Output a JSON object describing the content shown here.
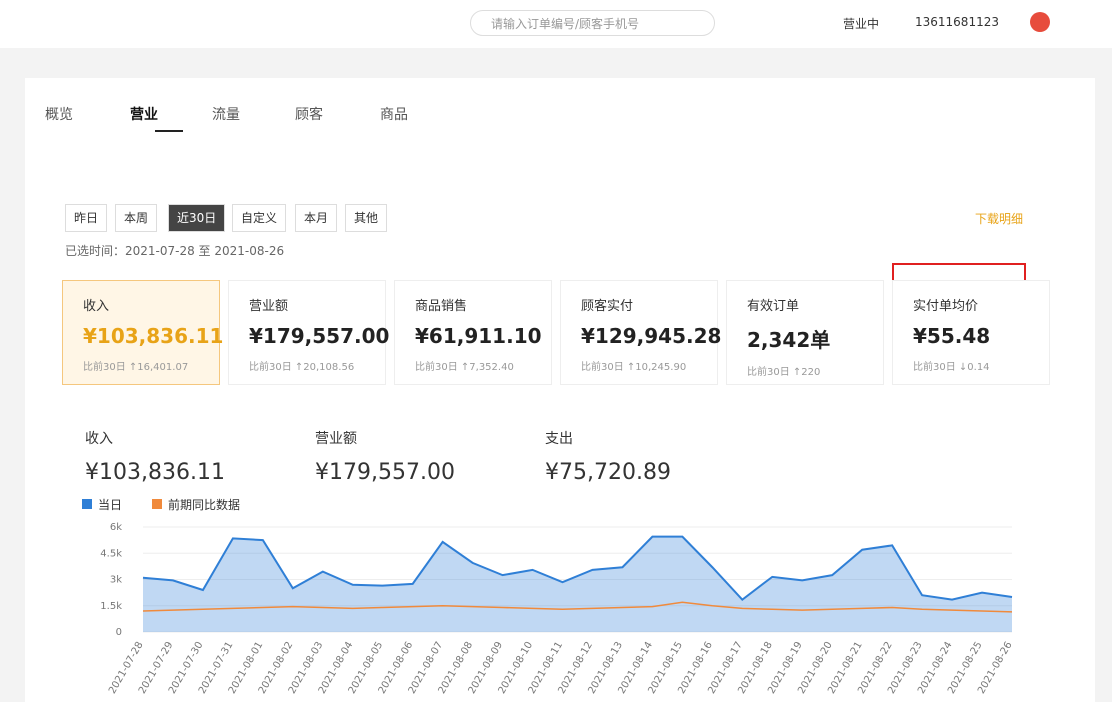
{
  "topbar": {
    "search": "请输入订单编号/顾客手机号",
    "status": "营业中",
    "phone": "13611681123"
  },
  "tabs": [
    "概览",
    "营业",
    "流量",
    "顾客",
    "商品"
  ],
  "ranges": [
    "昨日",
    "本周",
    "近30日",
    "自定义",
    "本月",
    "其他"
  ],
  "date_range": "已选时间：2021-07-28 至 2021-08-26",
  "download": "下载明细",
  "cards": [
    {
      "label": "收入",
      "value": "¥103,836.11",
      "compare": "比前30日 ↑16,401.07"
    },
    {
      "label": "营业额",
      "value": "¥179,557.00",
      "compare": "比前30日 ↑20,108.56"
    },
    {
      "label": "商品销售",
      "value": "¥61,911.10",
      "compare": "比前30日 ↑7,352.40"
    },
    {
      "label": "顾客实付",
      "value": "¥129,945.28",
      "compare": "比前30日 ↑10,245.90"
    },
    {
      "label": "有效订单",
      "value": "2,342单",
      "compare": "比前30日 ↑220"
    },
    {
      "label": "实付单均价",
      "value": "¥55.48",
      "compare": "比前30日 ↓0.14"
    }
  ],
  "summary": [
    {
      "label": "收入",
      "value": "¥103,836.11"
    },
    {
      "label": "营业额",
      "value": "¥179,557.00"
    },
    {
      "label": "支出",
      "value": "¥75,720.89"
    }
  ],
  "chart_data": {
    "type": "area",
    "x": [
      "2021-07-28",
      "2021-07-29",
      "2021-07-30",
      "2021-07-31",
      "2021-08-01",
      "2021-08-02",
      "2021-08-03",
      "2021-08-04",
      "2021-08-05",
      "2021-08-06",
      "2021-08-07",
      "2021-08-08",
      "2021-08-09",
      "2021-08-10",
      "2021-08-11",
      "2021-08-12",
      "2021-08-13",
      "2021-08-14",
      "2021-08-15",
      "2021-08-16",
      "2021-08-17",
      "2021-08-18",
      "2021-08-19",
      "2021-08-20",
      "2021-08-21",
      "2021-08-22",
      "2021-08-23",
      "2021-08-24",
      "2021-08-25",
      "2021-08-26"
    ],
    "series": [
      {
        "name": "当日",
        "color": "#2f7fd6",
        "values": [
          3100,
          2950,
          2400,
          5350,
          5250,
          2500,
          3450,
          2700,
          2650,
          2750,
          5150,
          3950,
          3250,
          3550,
          2850,
          3550,
          3700,
          5450,
          5450,
          3700,
          1850,
          3150,
          2950,
          3250,
          4700,
          4950,
          2100,
          1850,
          2250,
          2000
        ]
      },
      {
        "name": "前期同比数据",
        "color": "#f08a3c",
        "values": [
          1200,
          1250,
          1300,
          1350,
          1400,
          1450,
          1400,
          1350,
          1400,
          1450,
          1500,
          1450,
          1400,
          1350,
          1300,
          1350,
          1400,
          1450,
          1700,
          1500,
          1350,
          1300,
          1250,
          1300,
          1350,
          1400,
          1300,
          1250,
          1200,
          1150
        ]
      }
    ],
    "ylim": [
      0,
      6000
    ],
    "yticks": [
      0,
      {
        "value": 1500,
        "label": "1.5k"
      },
      {
        "value": 3000,
        "label": "3k"
      },
      {
        "value": 4500,
        "label": "4.5k"
      },
      {
        "value": 6000,
        "label": "6k"
      }
    ]
  }
}
